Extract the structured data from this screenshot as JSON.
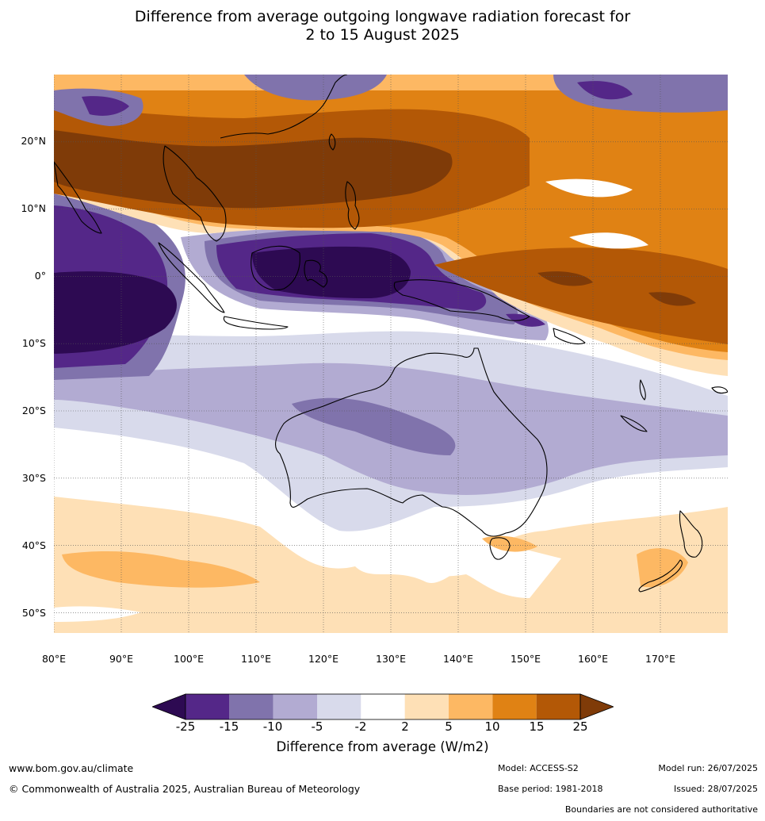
{
  "title": {
    "line1": "Difference from average outgoing longwave radiation forecast for",
    "line2": "2 to 15 August 2025"
  },
  "map": {
    "region": "Australia and Western Pacific",
    "lat_labels": [
      "20°N",
      "10°N",
      "0°",
      "10°S",
      "20°S",
      "30°S",
      "40°S",
      "50°S"
    ],
    "lon_labels": [
      "80°E",
      "90°E",
      "100°E",
      "110°E",
      "120°E",
      "130°E",
      "140°E",
      "150°E",
      "160°E",
      "170°E"
    ],
    "lat_range": [
      -55,
      30
    ],
    "lon_range": [
      80,
      180
    ],
    "gridlines": true
  },
  "colorbar": {
    "ticks": [
      "-25",
      "-15",
      "-10",
      "-5",
      "-2",
      "2",
      "5",
      "10",
      "15",
      "25"
    ],
    "colors": [
      "#2d0a52",
      "#542788",
      "#8073ac",
      "#b2abd2",
      "#d8daeb",
      "#ffffff",
      "#fee0b6",
      "#fdb863",
      "#e08214",
      "#b35806",
      "#7f3b08"
    ],
    "label": "Difference from average (W/m2)",
    "extend": "both"
  },
  "footer": {
    "website": "www.bom.gov.au/climate",
    "copyright": "© Commonwealth of Australia 2025, Australian Bureau of Meteorology",
    "model": "Model: ACCESS-S2",
    "base_period": "Base period: 1981-2018",
    "model_run": "Model run: 26/07/2025",
    "issued": "Issued: 28/07/2025",
    "disclaimer": "Boundaries are not considered authoritative"
  }
}
